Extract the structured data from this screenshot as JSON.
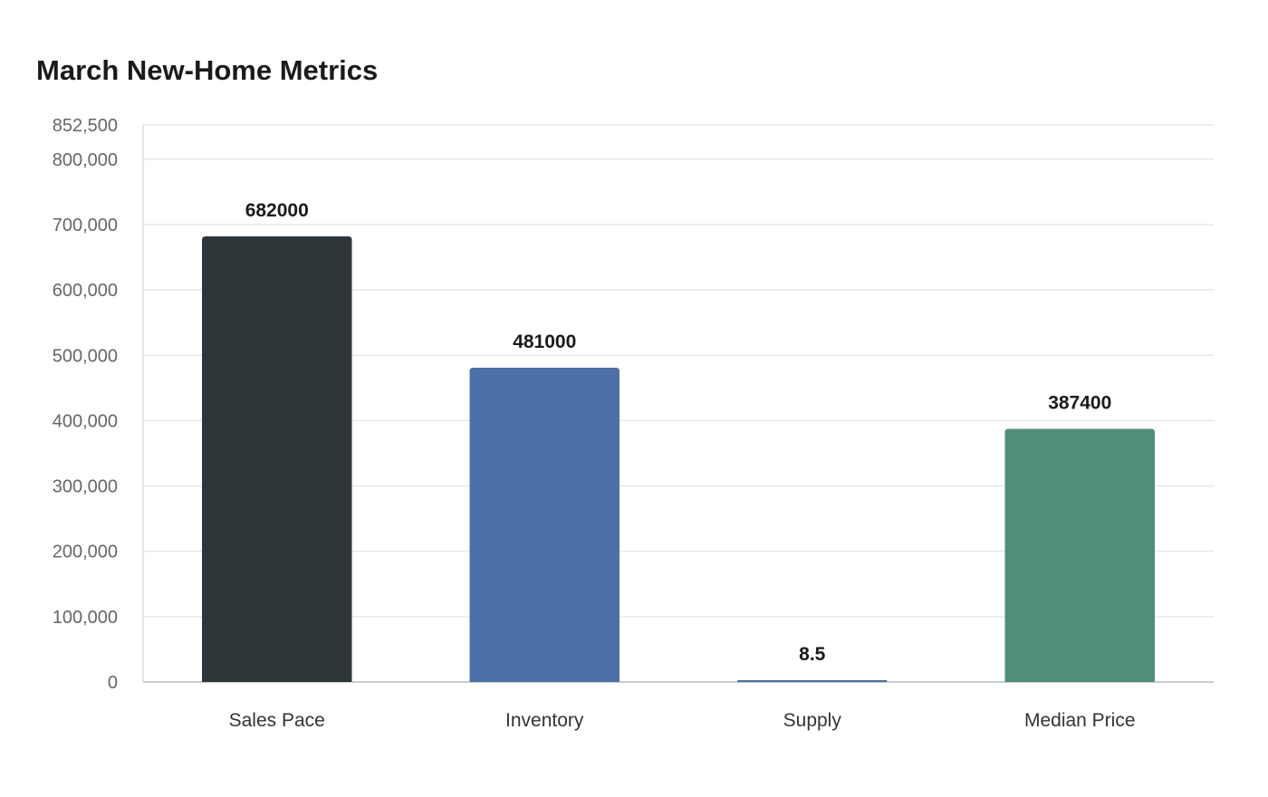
{
  "chart_data": {
    "type": "bar",
    "title": "March New-Home Metrics",
    "xlabel": "",
    "ylabel": "",
    "categories": [
      "Sales Pace",
      "Inventory",
      "Supply",
      "Median Price"
    ],
    "values": [
      682000,
      481000,
      8.5,
      387400
    ],
    "data_labels": [
      "682000",
      "481000",
      "8.5",
      "387400"
    ],
    "bar_colors": [
      "#2e3538",
      "#4a70a5",
      "#4a70a5",
      "#4f8e7b"
    ],
    "ylim": [
      0,
      852500
    ],
    "yticks": [
      0,
      100000,
      200000,
      300000,
      400000,
      500000,
      600000,
      700000,
      800000,
      852500
    ],
    "ytick_labels": [
      "0",
      "100,000",
      "200,000",
      "300,000",
      "400,000",
      "500,000",
      "600,000",
      "700,000",
      "800,000",
      "852,500"
    ],
    "grid": true,
    "legend": "none"
  }
}
